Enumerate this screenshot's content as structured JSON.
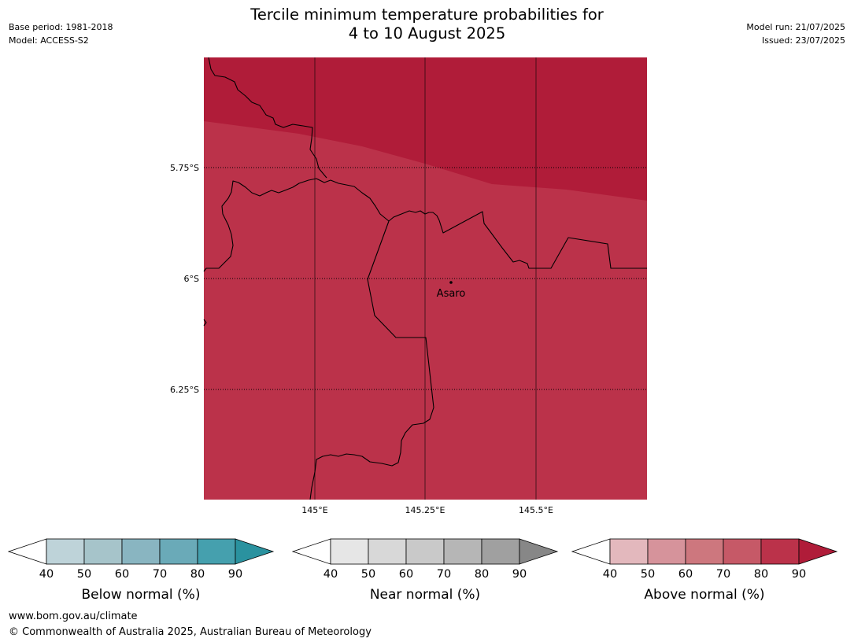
{
  "title": {
    "line1": "Tercile minimum temperature probabilities for",
    "line2": "4 to 10 August 2025"
  },
  "meta": {
    "base_period": "Base period: 1981-2018",
    "model": "Model: ACCESS-S2",
    "model_run": "Model run: 21/07/2025",
    "issued": "Issued: 23/07/2025"
  },
  "map": {
    "region": "Papua New Guinea highlands",
    "place": {
      "name": "Asaro",
      "lon": 145.36,
      "lat": -6.02
    },
    "lat_ticks": [
      "5.75°S",
      "6°S",
      "6.25°S"
    ],
    "lon_ticks": [
      "145°E",
      "145.25°E",
      "145.5°E"
    ],
    "probability_zones": [
      {
        "category": "Above normal",
        "range": "80-90%",
        "color": "#b01c39"
      },
      {
        "category": "Above normal",
        "range": "70-80%",
        "color": "#bb324a"
      }
    ],
    "grid_lines": "dotted"
  },
  "colorbars": [
    {
      "label": "Below normal (%)",
      "ticks": [
        "40",
        "50",
        "60",
        "70",
        "80",
        "90"
      ],
      "colors": [
        "#ffffff",
        "#bed3d9",
        "#a6c4ca",
        "#89b5c1",
        "#6aaab8",
        "#45a0ae",
        "#2a929f"
      ]
    },
    {
      "label": "Near normal (%)",
      "ticks": [
        "40",
        "50",
        "60",
        "70",
        "80",
        "90"
      ],
      "colors": [
        "#ffffff",
        "#e6e6e6",
        "#d8d8d8",
        "#c9c9c9",
        "#b6b6b6",
        "#a0a0a0",
        "#878787"
      ]
    },
    {
      "label": "Above normal (%)",
      "ticks": [
        "40",
        "50",
        "60",
        "70",
        "80",
        "90"
      ],
      "colors": [
        "#ffffff",
        "#e3b8bd",
        "#d6939b",
        "#cd777e",
        "#c65967",
        "#bb324a",
        "#b01c39"
      ]
    }
  ],
  "footer": {
    "url": "www.bom.gov.au/climate",
    "copyright": "© Commonwealth of Australia 2025, Australian Bureau of Meteorology"
  }
}
